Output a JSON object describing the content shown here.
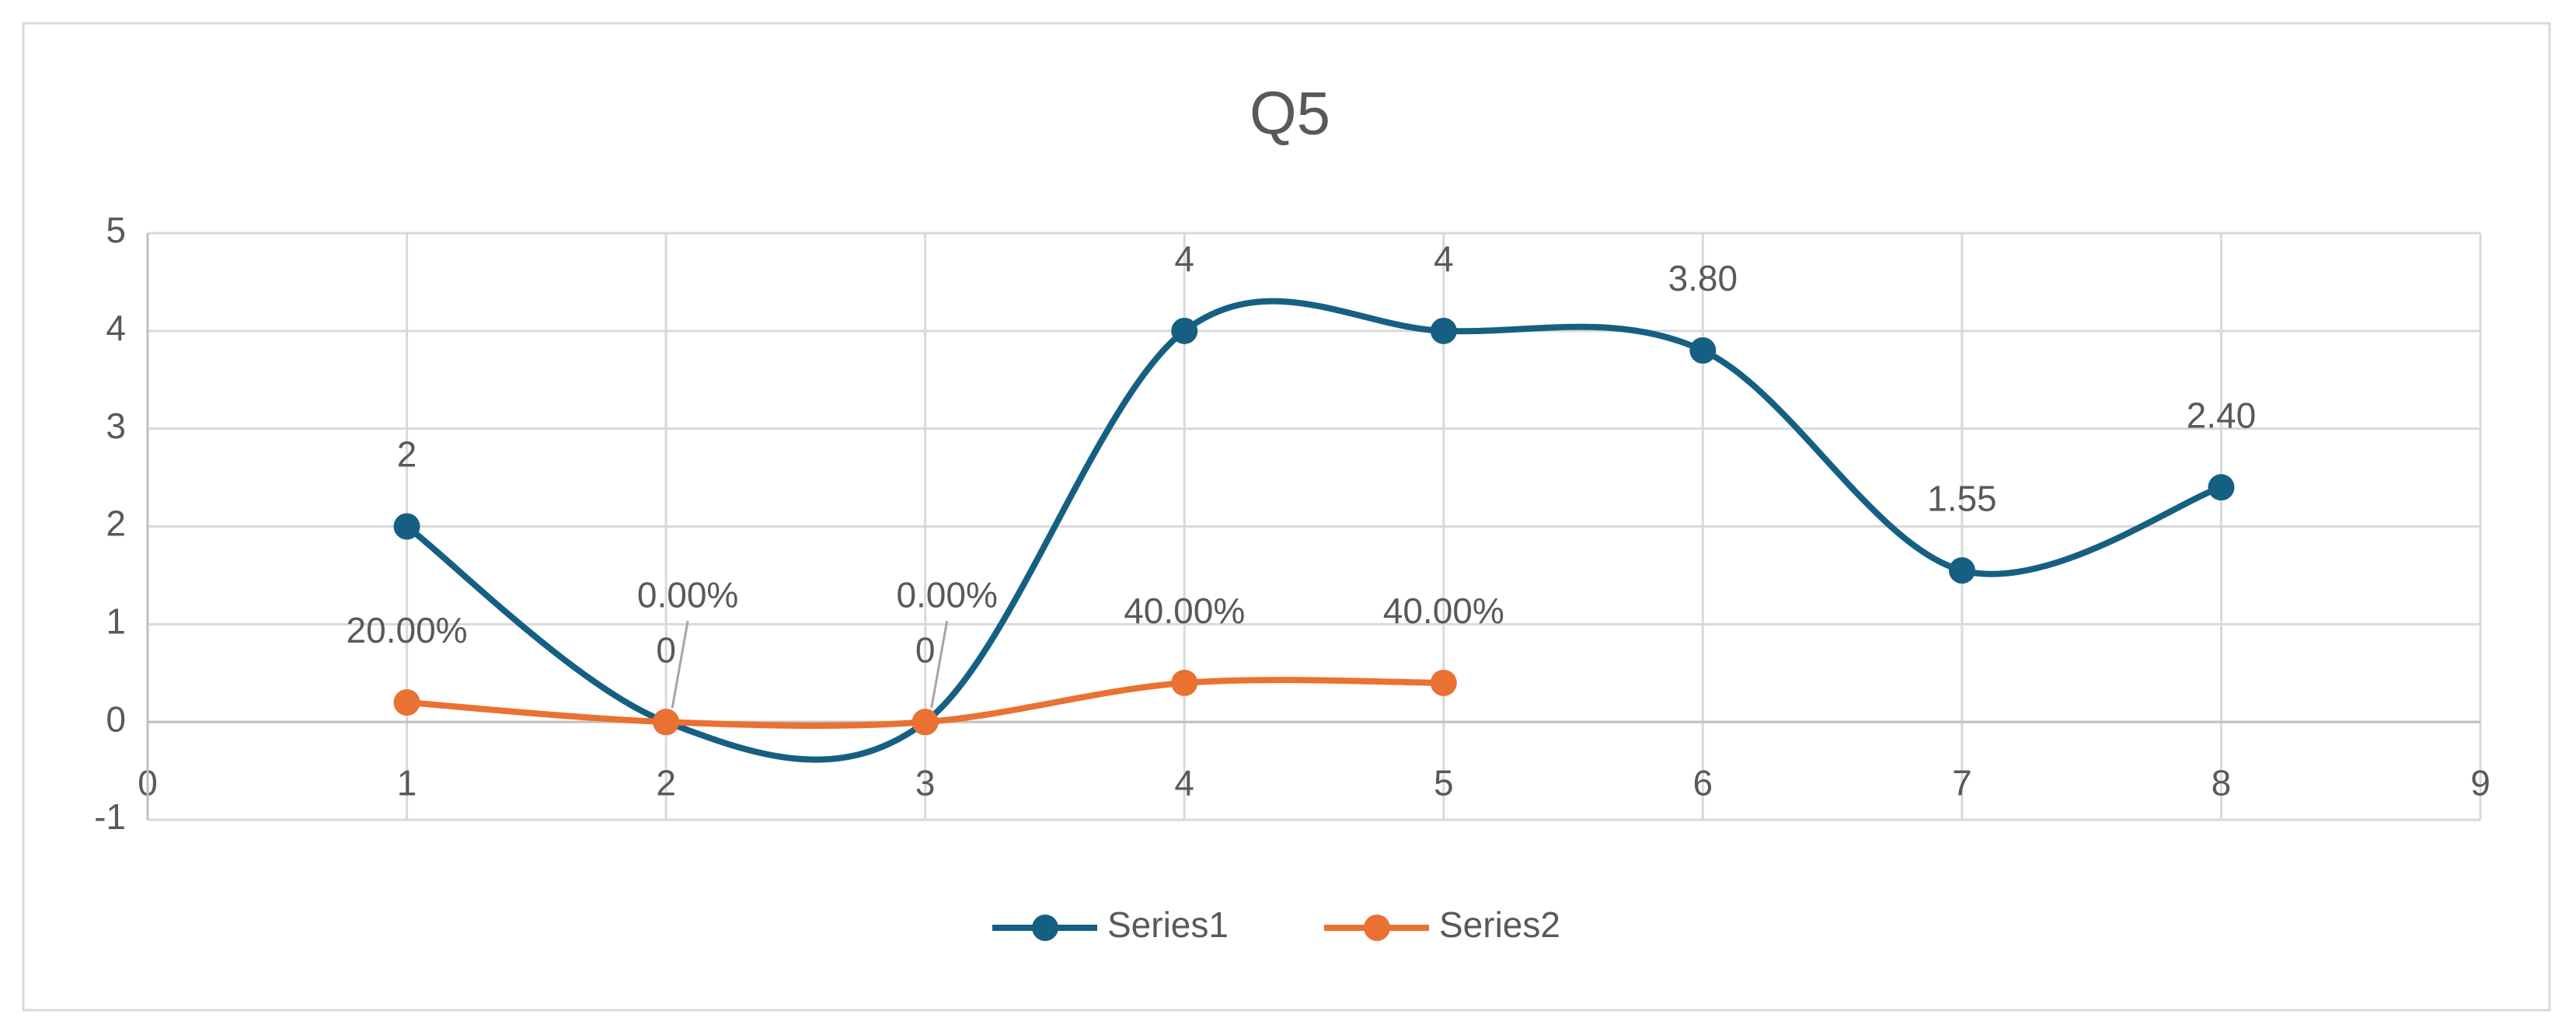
{
  "chart_data": {
    "type": "scatter",
    "title": "Q5",
    "series": [
      {
        "name": "Series1",
        "color": "#156082",
        "x": [
          1,
          2,
          3,
          4,
          5,
          6,
          7,
          8
        ],
        "values": [
          2,
          0,
          0,
          4,
          4,
          3.8,
          1.55,
          2.4
        ],
        "value_labels": [
          "2",
          "0",
          "0",
          "4",
          "4",
          "3.80",
          "1.55",
          "2.40"
        ]
      },
      {
        "name": "Series2",
        "color": "#e97132",
        "x": [
          1,
          2,
          3,
          4,
          5
        ],
        "values": [
          0.2,
          0,
          0,
          0.4,
          0.4
        ],
        "value_labels": [
          "20.00%",
          "0.00%",
          "0.00%",
          "40.00%",
          "40.00%"
        ]
      }
    ],
    "xlim": [
      0,
      9
    ],
    "xticks": [
      0,
      1,
      2,
      3,
      4,
      5,
      6,
      7,
      8,
      9
    ],
    "ylim": [
      -1,
      5
    ],
    "yticks": [
      -1,
      0,
      1,
      2,
      3,
      4,
      5
    ],
    "grid": true,
    "smooth": true,
    "legend": "bottom"
  }
}
